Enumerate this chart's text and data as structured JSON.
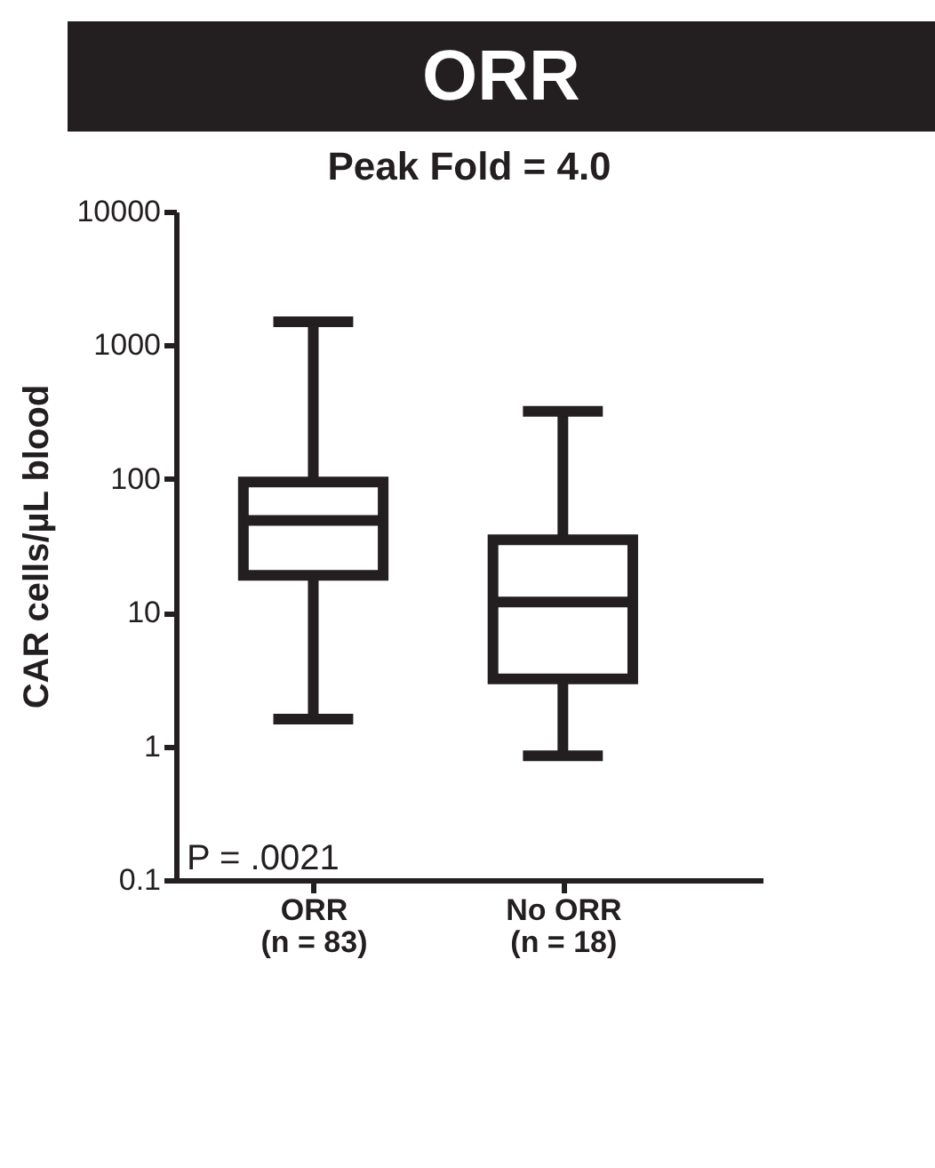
{
  "chart_data": {
    "type": "box",
    "title": "ORR",
    "subtitle": "Peak Fold = 4.0",
    "ylabel": "CAR cells/µL blood",
    "categories": [
      "ORR\n(n = 83)",
      "No ORR\n(n = 18)"
    ],
    "series": [
      {
        "color": "#231f20",
        "boxes": [
          {
            "low": 1.6,
            "q1": 19,
            "median": 49,
            "q3": 95,
            "high": 1500
          },
          {
            "low": 0.85,
            "q1": 3.2,
            "median": 12,
            "q3": 35,
            "high": 320
          }
        ]
      }
    ],
    "log": true,
    "ylim": [
      0.1,
      10000
    ],
    "yticks": [
      0.1,
      1,
      10,
      100,
      1000,
      10000
    ],
    "grid": false,
    "annotations": [
      "P = .0021"
    ]
  }
}
